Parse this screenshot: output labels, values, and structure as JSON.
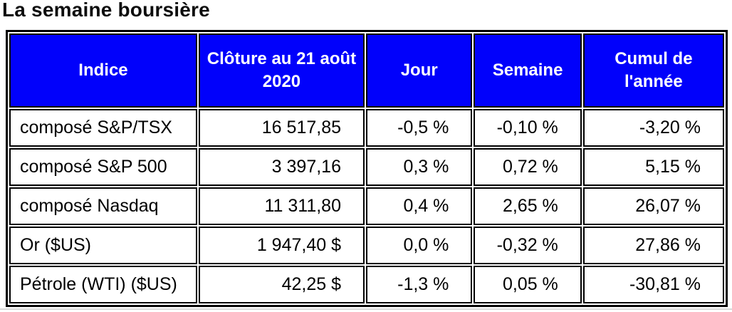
{
  "title": "La semaine boursière",
  "colors": {
    "header_bg": "#0101FB",
    "header_text": "#FFFFFF",
    "border": "#000000",
    "page_bg": "#FFFFFF",
    "bottom_rule": "#D8D8D8"
  },
  "table": {
    "headers": [
      "Indice",
      "Clôture au 21 août\n2020",
      "Jour",
      "Semaine",
      "Cumul de\nl'année"
    ],
    "rows": [
      {
        "indice": "composé S&P/TSX",
        "cloture": "16 517,85",
        "jour": "-0,5 %",
        "semaine": "-0,10 %",
        "cumul": "-3,20 %"
      },
      {
        "indice": "composé S&P 500",
        "cloture": "3 397,16",
        "jour": "0,3 %",
        "semaine": "0,72 %",
        "cumul": "5,15 %"
      },
      {
        "indice": "composé Nasdaq",
        "cloture": "11 311,80",
        "jour": "0,4 %",
        "semaine": "2,65 %",
        "cumul": "26,07 %"
      },
      {
        "indice": "Or ($US)",
        "cloture": "1 947,40 $",
        "jour": "0,0 %",
        "semaine": "-0,32 %",
        "cumul": "27,86 %"
      },
      {
        "indice": "Pétrole (WTI) ($US)",
        "cloture": "42,25 $",
        "jour": "-1,3 %",
        "semaine": "0,05 %",
        "cumul": "-30,81 %"
      }
    ]
  },
  "chart_data": {
    "type": "table",
    "title": "La semaine boursière",
    "columns": [
      "Indice",
      "Clôture au 21 août 2020",
      "Jour",
      "Semaine",
      "Cumul de l'année"
    ],
    "rows": [
      [
        "composé S&P/TSX",
        "16 517,85",
        "-0,5 %",
        "-0,10 %",
        "-3,20 %"
      ],
      [
        "composé S&P 500",
        "3 397,16",
        "0,3 %",
        "0,72 %",
        "5,15 %"
      ],
      [
        "composé Nasdaq",
        "11 311,80",
        "0,4 %",
        "2,65 %",
        "26,07 %"
      ],
      [
        "Or ($US)",
        "1 947,40 $",
        "0,0 %",
        "-0,32 %",
        "27,86 %"
      ],
      [
        "Pétrole (WTI) ($US)",
        "42,25 $",
        "-1,3 %",
        "0,05 %",
        "-30,81 %"
      ]
    ]
  }
}
